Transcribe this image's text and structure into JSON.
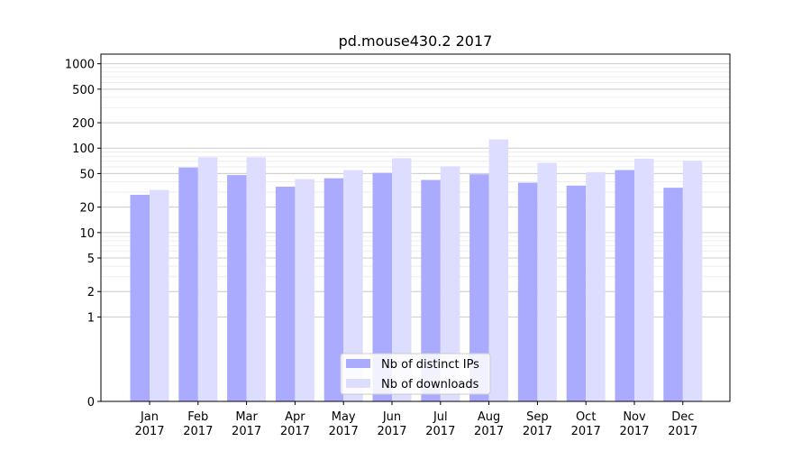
{
  "chart_data": {
    "type": "bar",
    "title": "pd.mouse430.2 2017",
    "xlabel": "",
    "ylabel": "",
    "scale": "symlog",
    "ylim": [
      0,
      1300
    ],
    "yticks": [
      0,
      1,
      2,
      5,
      10,
      20,
      50,
      100,
      200,
      500,
      1000
    ],
    "categories": [
      "Jan\n2017",
      "Feb\n2017",
      "Mar\n2017",
      "Apr\n2017",
      "May\n2017",
      "Jun\n2017",
      "Jul\n2017",
      "Aug\n2017",
      "Sep\n2017",
      "Oct\n2017",
      "Nov\n2017",
      "Dec\n2017"
    ],
    "series": [
      {
        "name": "Nb of distinct IPs",
        "color": "#aaaaff",
        "values": [
          28,
          59,
          48,
          35,
          44,
          51,
          42,
          49,
          39,
          36,
          55,
          34
        ]
      },
      {
        "name": "Nb of downloads",
        "color": "#ddddff",
        "values": [
          32,
          78,
          78,
          43,
          55,
          76,
          61,
          127,
          67,
          52,
          75,
          71
        ]
      }
    ],
    "grid": true,
    "legend": "lower-center"
  }
}
